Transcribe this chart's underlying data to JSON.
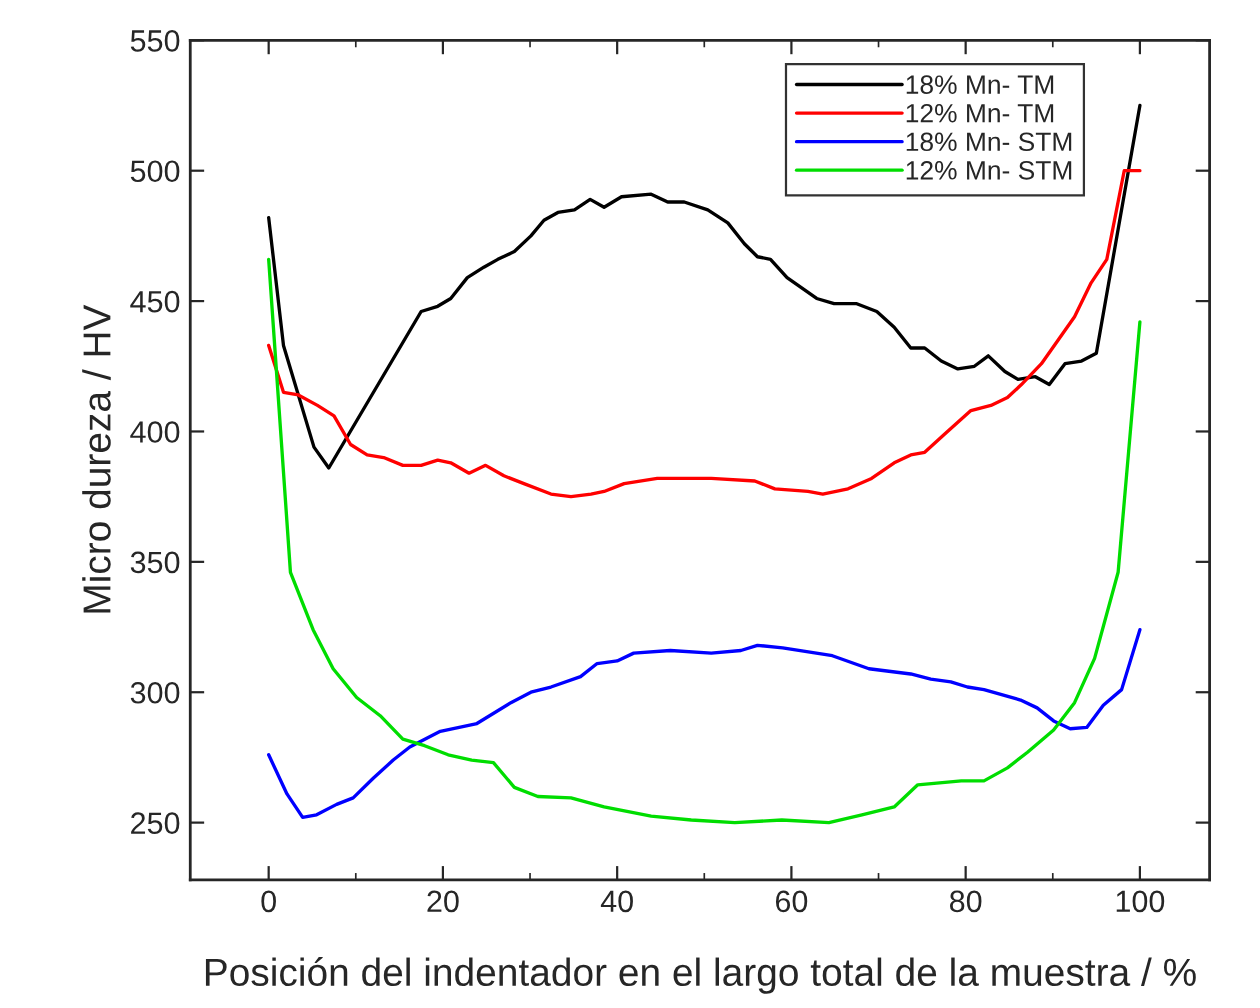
{
  "chart_data": {
    "type": "line",
    "xlabel": "Posición del indentador en el largo total de la muestra / %",
    "ylabel": "Micro dureza / HV",
    "xlim": [
      -9,
      108
    ],
    "ylim": [
      228,
      550
    ],
    "xticks": [
      0,
      {
        "value": 10,
        "label": null
      },
      20,
      {
        "value": 30,
        "label": null
      },
      40,
      {
        "value": 50,
        "label": null
      },
      60,
      {
        "value": 70,
        "label": null
      },
      80,
      {
        "value": 90,
        "label": null
      },
      100
    ],
    "yticks": [
      250,
      300,
      350,
      400,
      450,
      500,
      550
    ],
    "grid": false,
    "legend": "top right",
    "marker": "none",
    "line_style": "solid",
    "series": [
      {
        "name": "18% Mn- TM",
        "color": "#000000",
        "x": [
          0,
          1.7,
          5.2,
          6.9,
          17.5,
          19.4,
          20.9,
          22.8,
          24.7,
          26.3,
          28.2,
          30.1,
          31.6,
          33.2,
          35.1,
          36.9,
          38.5,
          40.5,
          43.9,
          45.8,
          47.7,
          50.4,
          52.7,
          54.6,
          56.1,
          57.6,
          59.5,
          62.9,
          64.9,
          67.5,
          69.8,
          71.8,
          73.7,
          75.3,
          77.2,
          79.1,
          81,
          82.6,
          84.5,
          86,
          88,
          89.6,
          91.4,
          93.3,
          95,
          100
        ],
        "values": [
          482,
          433,
          394,
          386,
          446,
          448,
          451,
          459,
          463,
          466,
          469,
          475,
          481,
          484,
          485,
          489,
          486,
          490,
          491,
          488,
          488,
          485,
          480,
          472,
          467,
          466,
          459,
          451,
          449,
          449,
          446,
          440,
          432,
          432,
          427,
          424,
          425,
          429,
          423,
          420,
          421,
          418,
          426,
          427,
          430,
          525
        ]
      },
      {
        "name": "12% Mn- TM",
        "color": "#ff0000",
        "x": [
          0,
          1.7,
          3.4,
          5.6,
          7.5,
          9.4,
          11.3,
          13.2,
          15.4,
          17.5,
          19.4,
          20.9,
          23,
          24.9,
          27,
          29.3,
          32.4,
          34.7,
          37,
          38.5,
          40.8,
          44.6,
          50.8,
          55.8,
          58.1,
          61.9,
          63.6,
          66.5,
          69.2,
          71.8,
          73.7,
          75.3,
          77.6,
          80.6,
          82.9,
          84.8,
          86.4,
          88.7,
          90.6,
          92.5,
          94.4,
          96.2,
          98.2,
          100
        ],
        "values": [
          433,
          415,
          414,
          410,
          406,
          395,
          391,
          390,
          387,
          387,
          389,
          388,
          384,
          387,
          383,
          380,
          376,
          375,
          376,
          377,
          380,
          382,
          382,
          381,
          378,
          377,
          376,
          378,
          382,
          388,
          391,
          392,
          399,
          408,
          410,
          413,
          418,
          426,
          435,
          444,
          457,
          466,
          500,
          500
        ]
      },
      {
        "name": "18% Mn- STM",
        "color": "#0000ff",
        "x": [
          0,
          2.1,
          3.9,
          5.5,
          7.8,
          9.7,
          12,
          14.3,
          16.2,
          19.7,
          23.9,
          27.8,
          30.1,
          32.4,
          35.8,
          37.7,
          40,
          41.9,
          46.1,
          50.8,
          54.2,
          56.1,
          59,
          64.7,
          68.9,
          73.7,
          76,
          78.3,
          80.2,
          82.1,
          86.3,
          88.2,
          90.1,
          92,
          93.9,
          95.8,
          97.9,
          100
        ],
        "values": [
          276,
          261,
          252,
          253,
          257,
          259.5,
          267,
          274,
          279,
          285,
          288,
          296,
          300,
          302,
          306,
          311,
          312,
          315,
          316,
          315,
          316,
          318,
          317,
          314,
          309,
          307,
          305,
          304,
          302,
          301,
          297,
          294,
          289,
          286,
          286.5,
          295,
          301,
          324
        ]
      },
      {
        "name": "12% Mn- STM",
        "color": "#00dd00",
        "x": [
          0,
          2.5,
          5.1,
          7.4,
          10.1,
          12.8,
          15.4,
          17.9,
          20.6,
          23.3,
          25.8,
          28.2,
          30.9,
          34.7,
          38.5,
          43.9,
          48.5,
          53.5,
          58.9,
          64.3,
          68.1,
          71.8,
          74.5,
          79.5,
          82.1,
          84.8,
          87.1,
          90.1,
          92.5,
          94.8,
          97.5,
          100
        ],
        "values": [
          466,
          346,
          324,
          309,
          298,
          291,
          282,
          279.5,
          276,
          274,
          273,
          263.5,
          260,
          259.5,
          256,
          252.5,
          251,
          250,
          251,
          250,
          253,
          256,
          264.5,
          266,
          266,
          271,
          277,
          285.5,
          296,
          313,
          346,
          442
        ]
      }
    ]
  }
}
